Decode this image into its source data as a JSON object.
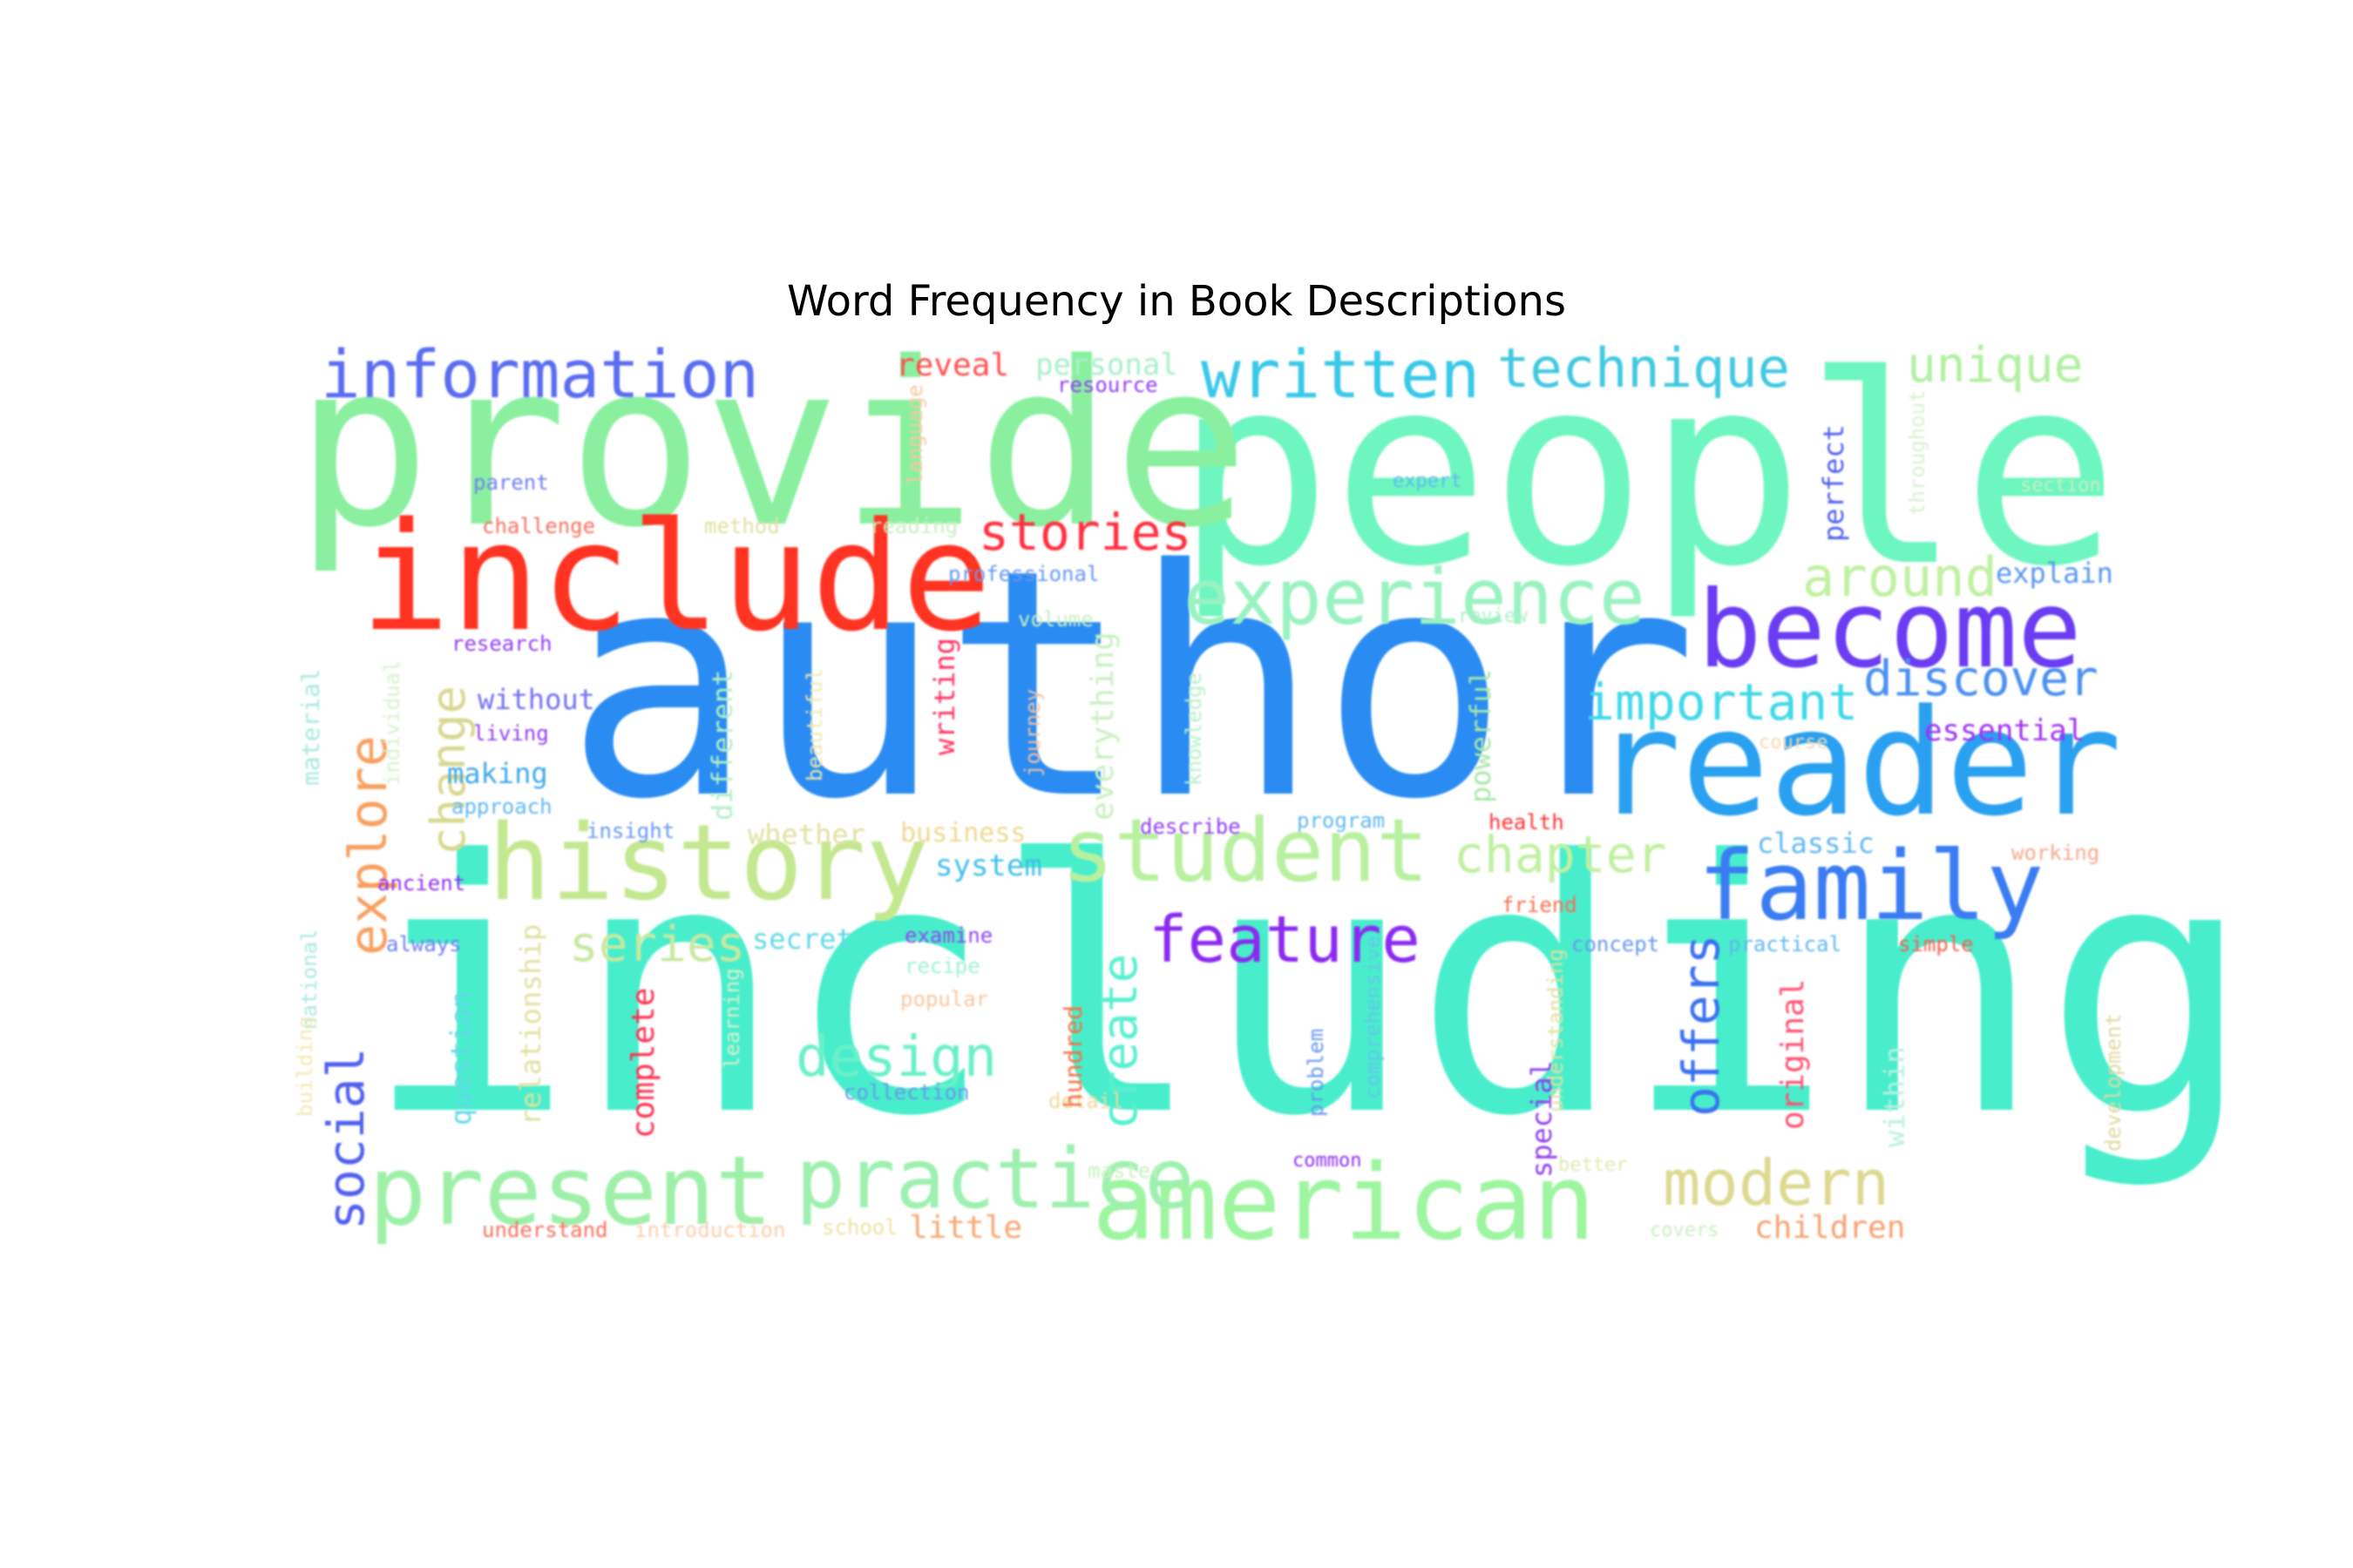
{
  "chart_data": {
    "type": "wordcloud",
    "title": "Word Frequency in Book Descriptions",
    "words": [
      {
        "text": "including",
        "color": "#48eecb"
      },
      {
        "text": "author",
        "color": "#2a8cf2"
      },
      {
        "text": "people",
        "color": "#6ef6c1"
      },
      {
        "text": "provide",
        "color": "#8af0a0"
      },
      {
        "text": "include",
        "color": "#ff3322"
      },
      {
        "text": "reader",
        "color": "#2aa0f0"
      },
      {
        "text": "become",
        "color": "#6a3cf2"
      },
      {
        "text": "american",
        "color": "#9ef5a0"
      },
      {
        "text": "history",
        "color": "#c3e88f"
      },
      {
        "text": "student",
        "color": "#b9f0a0"
      },
      {
        "text": "family",
        "color": "#3a7cf2"
      },
      {
        "text": "present",
        "color": "#9ef0a8"
      },
      {
        "text": "practice",
        "color": "#9ef0b0"
      },
      {
        "text": "experience",
        "color": "#9af2c0"
      },
      {
        "text": "information",
        "color": "#5a6cf0"
      },
      {
        "text": "written",
        "color": "#38c8e8"
      },
      {
        "text": "technique",
        "color": "#40c8e0"
      },
      {
        "text": "feature",
        "color": "#8a2af0"
      },
      {
        "text": "modern",
        "color": "#dcd98f"
      },
      {
        "text": "design",
        "color": "#6af0c8"
      },
      {
        "text": "stories",
        "color": "#ff3040"
      },
      {
        "text": "chapter",
        "color": "#c0f0a0"
      },
      {
        "text": "around",
        "color": "#c0f0a0"
      },
      {
        "text": "important",
        "color": "#40d8e8"
      },
      {
        "text": "discover",
        "color": "#4a90f0"
      },
      {
        "text": "unique",
        "color": "#b0f0a0"
      },
      {
        "text": "series",
        "color": "#c8e8a0"
      },
      {
        "text": "explore",
        "color": "#f8a060"
      },
      {
        "text": "social",
        "color": "#5060f0"
      },
      {
        "text": "create",
        "color": "#58f0d0"
      },
      {
        "text": "offers",
        "color": "#3a70f0"
      },
      {
        "text": "change",
        "color": "#d8d890"
      },
      {
        "text": "children",
        "color": "#f8a070"
      },
      {
        "text": "little",
        "color": "#f8a870"
      },
      {
        "text": "reveal",
        "color": "#ff5050"
      },
      {
        "text": "personal",
        "color": "#a8f0c8"
      },
      {
        "text": "essential",
        "color": "#a030f0"
      },
      {
        "text": "explain",
        "color": "#5898f0"
      },
      {
        "text": "classic",
        "color": "#60b8f0"
      },
      {
        "text": "system",
        "color": "#40c0e8"
      },
      {
        "text": "secret",
        "color": "#60d8e8"
      },
      {
        "text": "making",
        "color": "#40a8e8"
      },
      {
        "text": "without",
        "color": "#7070f0"
      },
      {
        "text": "whether",
        "color": "#e0e0a0"
      },
      {
        "text": "business",
        "color": "#f0d890"
      },
      {
        "text": "resource",
        "color": "#9040f0"
      },
      {
        "text": "parent",
        "color": "#7080f0"
      },
      {
        "text": "challenge",
        "color": "#f87060"
      },
      {
        "text": "method",
        "color": "#e0e0a0"
      },
      {
        "text": "reading",
        "color": "#c8f0c0"
      },
      {
        "text": "professional",
        "color": "#6898f0"
      },
      {
        "text": "volume",
        "color": "#c8f0c0"
      },
      {
        "text": "research",
        "color": "#9040f0"
      },
      {
        "text": "living",
        "color": "#9040f0"
      },
      {
        "text": "approach",
        "color": "#60b8f0"
      },
      {
        "text": "insight",
        "color": "#6898f0"
      },
      {
        "text": "ancient",
        "color": "#9030f0"
      },
      {
        "text": "always",
        "color": "#7080f0"
      },
      {
        "text": "examine",
        "color": "#9048f0"
      },
      {
        "text": "recipe",
        "color": "#a0f0d8"
      },
      {
        "text": "popular",
        "color": "#f8c8a0"
      },
      {
        "text": "collection",
        "color": "#6898f0"
      },
      {
        "text": "detail",
        "color": "#f0d8a0"
      },
      {
        "text": "master",
        "color": "#c8f0c0"
      },
      {
        "text": "school",
        "color": "#f0e0a0"
      },
      {
        "text": "introduction",
        "color": "#f8d0b0"
      },
      {
        "text": "understand",
        "color": "#f87060"
      },
      {
        "text": "describe",
        "color": "#9040f0"
      },
      {
        "text": "program",
        "color": "#60b8f0"
      },
      {
        "text": "health",
        "color": "#ff3030"
      },
      {
        "text": "friend",
        "color": "#f87050"
      },
      {
        "text": "concept",
        "color": "#6898f0"
      },
      {
        "text": "practical",
        "color": "#60b8f0"
      },
      {
        "text": "simple",
        "color": "#f86050"
      },
      {
        "text": "working",
        "color": "#f8a890"
      },
      {
        "text": "common",
        "color": "#9030f0"
      },
      {
        "text": "better",
        "color": "#e0e8b0"
      },
      {
        "text": "covers",
        "color": "#c8f0c0"
      },
      {
        "text": "review",
        "color": "#a8f0c8"
      },
      {
        "text": "expert",
        "color": "#60b8f0"
      },
      {
        "text": "section",
        "color": "#c8f0c0"
      },
      {
        "text": "course",
        "color": "#f8d8b0"
      },
      {
        "text": "language",
        "color": "#f8c8a0"
      },
      {
        "text": "material",
        "color": "#a8e8e0"
      },
      {
        "text": "individual",
        "color": "#d8f0d0"
      },
      {
        "text": "different",
        "color": "#b0f0c8"
      },
      {
        "text": "beautiful",
        "color": "#f0e8b0"
      },
      {
        "text": "writing",
        "color": "#ff3060"
      },
      {
        "text": "journey",
        "color": "#f8c0a0"
      },
      {
        "text": "everything",
        "color": "#c8f0c0"
      },
      {
        "text": "knowledge",
        "color": "#b8f0c8"
      },
      {
        "text": "powerful",
        "color": "#a8e8a8"
      },
      {
        "text": "perfect",
        "color": "#5060f0"
      },
      {
        "text": "throughout",
        "color": "#d8f0d0"
      },
      {
        "text": "national",
        "color": "#a8e8e0"
      },
      {
        "text": "question",
        "color": "#60d8e8"
      },
      {
        "text": "relationship",
        "color": "#e0e0a0"
      },
      {
        "text": "complete",
        "color": "#ff3050"
      },
      {
        "text": "learning",
        "color": "#d8f0d0"
      },
      {
        "text": "building",
        "color": "#f0e8b0"
      },
      {
        "text": "hundred",
        "color": "#f87040"
      },
      {
        "text": "problem",
        "color": "#6898f0"
      },
      {
        "text": "comprehensive",
        "color": "#60c8e8"
      },
      {
        "text": "special",
        "color": "#9040f0"
      },
      {
        "text": "understanding",
        "color": "#e0e0a0"
      },
      {
        "text": "original",
        "color": "#ff5070"
      },
      {
        "text": "within",
        "color": "#b8f0e0"
      },
      {
        "text": "development",
        "color": "#e0d8a0"
      },
      {
        "text": "international",
        "color": "#6080f0"
      }
    ]
  }
}
